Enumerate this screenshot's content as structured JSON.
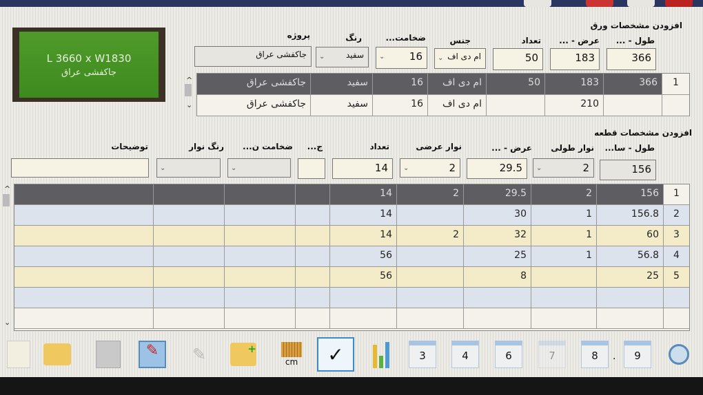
{
  "board": {
    "size": "L 3660 x W1830",
    "project": "جاکفشی عراق"
  },
  "sheet": {
    "title": "افزودن مشخصات ورق",
    "labels": {
      "length": "طول - ...",
      "width": "عرض - ...",
      "count": "تعداد",
      "material": "جنس",
      "thickness": "ضخامت...",
      "color": "رنگ",
      "project": "پروژه"
    },
    "inputs": {
      "length": "366",
      "width": "183",
      "count": "50",
      "material": "ام دی اف",
      "thickness": "16",
      "color": "سفید",
      "project": "جاکفشی عراق"
    },
    "rows": [
      [
        "1",
        "366",
        "183",
        "50",
        "ام دی اف",
        "16",
        "سفید",
        "جاکفشی عراق"
      ],
      [
        "",
        "",
        "210",
        "",
        "ام دی اف",
        "16",
        "سفید",
        "جاکفشی عراق"
      ]
    ]
  },
  "piece": {
    "title": "افزودن مشخصات قطعه",
    "labels": {
      "length": "طول - سا...",
      "edge_long": "نوار طولی",
      "width": "عرض - ...",
      "edge_short": "نوار عرضی",
      "count": "تعداد",
      "grain": "ج...",
      "edge_thickness": "ضخامت ن...",
      "edge_color": "رنگ نوار",
      "notes": "توضیحات"
    },
    "inputs": {
      "length": "156",
      "edge_long": "2",
      "width": "29.5",
      "edge_short": "2",
      "count": "14",
      "grain": "",
      "edge_thickness": "",
      "edge_color": "",
      "notes": ""
    },
    "rows": [
      [
        "1",
        "156",
        "2",
        "29.5",
        "2",
        "14",
        "",
        "",
        "",
        ""
      ],
      [
        "2",
        "156.8",
        "1",
        "30",
        "",
        "14",
        "",
        "",
        "",
        ""
      ],
      [
        "3",
        "60",
        "1",
        "32",
        "2",
        "14",
        "",
        "",
        "",
        ""
      ],
      [
        "4",
        "56.8",
        "1",
        "25",
        "",
        "56",
        "",
        "",
        "",
        ""
      ],
      [
        "5",
        "25",
        "",
        "8",
        "",
        "56",
        "",
        "",
        "",
        ""
      ],
      [
        "",
        "",
        "",
        "",
        "",
        "",
        "",
        "",
        "",
        ""
      ],
      [
        "",
        "",
        "",
        "",
        "",
        "",
        "",
        "",
        "",
        ""
      ]
    ]
  },
  "toolbar": {
    "units": "cm",
    "buttons": [
      "3",
      "4",
      "6",
      "7",
      "8",
      "9"
    ],
    "separator": "."
  }
}
